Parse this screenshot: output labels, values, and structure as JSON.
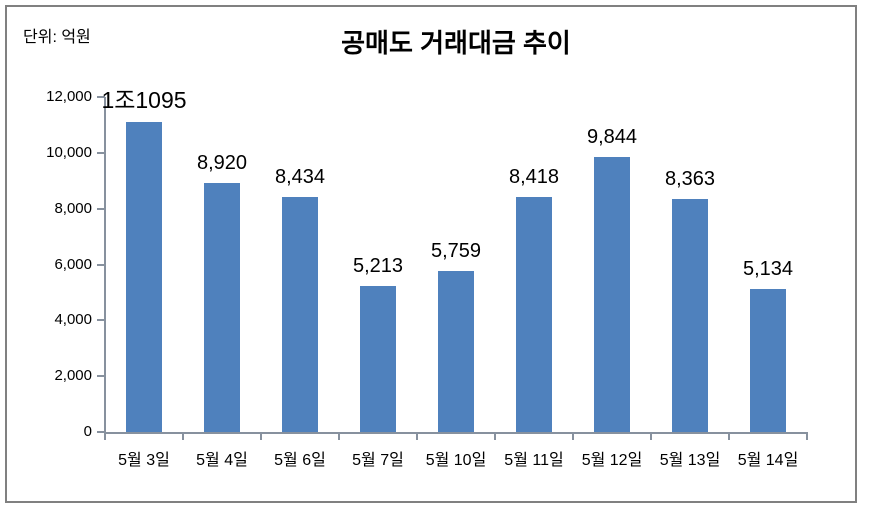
{
  "chart_data": {
    "type": "bar",
    "title": "공매도 거래대금 추이",
    "unit_label": "단위: 억원",
    "categories": [
      "5월 3일",
      "5월 4일",
      "5월 6일",
      "5월 7일",
      "5월 10일",
      "5월 11일",
      "5월 12일",
      "5월 13일",
      "5월 14일"
    ],
    "values": [
      11095,
      8920,
      8434,
      5213,
      5759,
      8418,
      9844,
      8363,
      5134
    ],
    "data_labels": [
      "1조1095",
      "8,920",
      "8,434",
      "5,213",
      "5,759",
      "8,418",
      "9,844",
      "8,363",
      "5,134"
    ],
    "xlabel": "",
    "ylabel": "",
    "ylim": [
      0,
      12000
    ],
    "ytick_interval": 2000,
    "ytick_labels": [
      "0",
      "2,000",
      "4,000",
      "6,000",
      "8,000",
      "10,000",
      "12,000"
    ],
    "grid": false,
    "legend": "none",
    "bar_color": "#4F81BD",
    "axis_color": "#87919E",
    "frame_color": "#808080",
    "text_color": "#000000"
  }
}
